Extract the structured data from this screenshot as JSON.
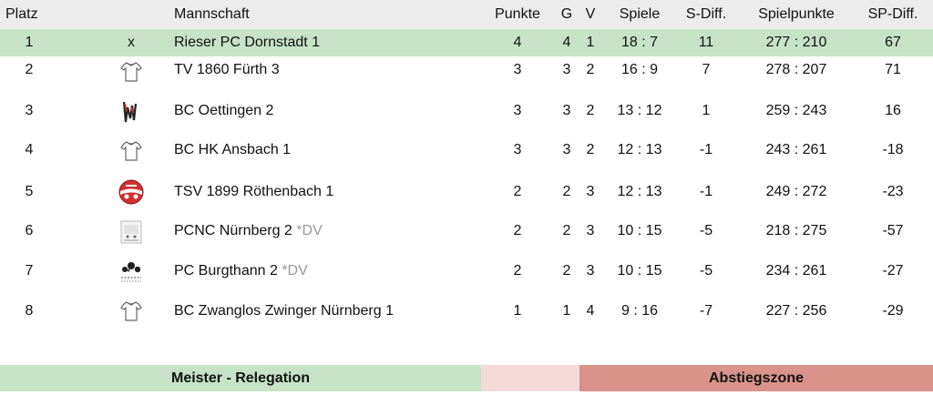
{
  "headers": {
    "platz": "Platz",
    "mannschaft": "Mannschaft",
    "punkte": "Punkte",
    "g": "G",
    "v": "V",
    "spiele": "Spiele",
    "sdiff": "S-Diff.",
    "spielpunkte": "Spielpunkte",
    "spdiff": "SP-Diff."
  },
  "rows": [
    {
      "platz": "1",
      "logo_text": "x",
      "team": "Rieser PC Dornstadt 1",
      "punkte": "4",
      "g": "4",
      "v": "1",
      "spiele": "18 : 7",
      "sdiff": "11",
      "sp": "277 : 210",
      "spdiff": "67"
    },
    {
      "platz": "2",
      "logo": "shirt-icon",
      "team": "TV 1860 Fürth 3",
      "punkte": "3",
      "g": "3",
      "v": "2",
      "spiele": "16 : 9",
      "sdiff": "7",
      "sp": "278 : 207",
      "spdiff": "71"
    },
    {
      "platz": "3",
      "logo": "club-logo-oettingen",
      "team": "BC Oettingen 2",
      "punkte": "3",
      "g": "3",
      "v": "2",
      "spiele": "13 : 12",
      "sdiff": "1",
      "sp": "259 : 243",
      "spdiff": "16"
    },
    {
      "platz": "4",
      "logo": "shirt-icon",
      "team": "BC HK Ansbach 1",
      "punkte": "3",
      "g": "3",
      "v": "2",
      "spiele": "12 : 13",
      "sdiff": "-1",
      "sp": "243 : 261",
      "spdiff": "-18"
    },
    {
      "platz": "5",
      "logo": "club-logo-roethenbach",
      "team": "TSV 1899 Röthenbach 1",
      "punkte": "2",
      "g": "2",
      "v": "3",
      "spiele": "12 : 13",
      "sdiff": "-1",
      "sp": "249 : 272",
      "spdiff": "-23"
    },
    {
      "platz": "6",
      "logo": "club-logo-pcnc",
      "team": "PCNC Nürnberg 2",
      "dv": "*DV",
      "punkte": "2",
      "g": "2",
      "v": "3",
      "spiele": "10 : 15",
      "sdiff": "-5",
      "sp": "218 : 275",
      "spdiff": "-57"
    },
    {
      "platz": "7",
      "logo": "club-logo-burgthann",
      "team": "PC Burgthann 2",
      "dv": "*DV",
      "punkte": "2",
      "g": "2",
      "v": "3",
      "spiele": "10 : 15",
      "sdiff": "-5",
      "sp": "234 : 261",
      "spdiff": "-27"
    },
    {
      "platz": "8",
      "logo": "shirt-icon",
      "team": "BC Zwanglos Zwinger Nürnberg 1",
      "punkte": "1",
      "g": "1",
      "v": "4",
      "spiele": "9 : 16",
      "sdiff": "-7",
      "sp": "227 : 256",
      "spdiff": "-29"
    }
  ],
  "legend": {
    "meister": "Meister - Relegation",
    "abstieg": "Abstiegszone"
  },
  "colors": {
    "leader": "#c7e2c7",
    "meister": "#c7e2c7",
    "neutral": "#f5dada",
    "abstieg": "#d9938a",
    "header": "#ececec"
  }
}
